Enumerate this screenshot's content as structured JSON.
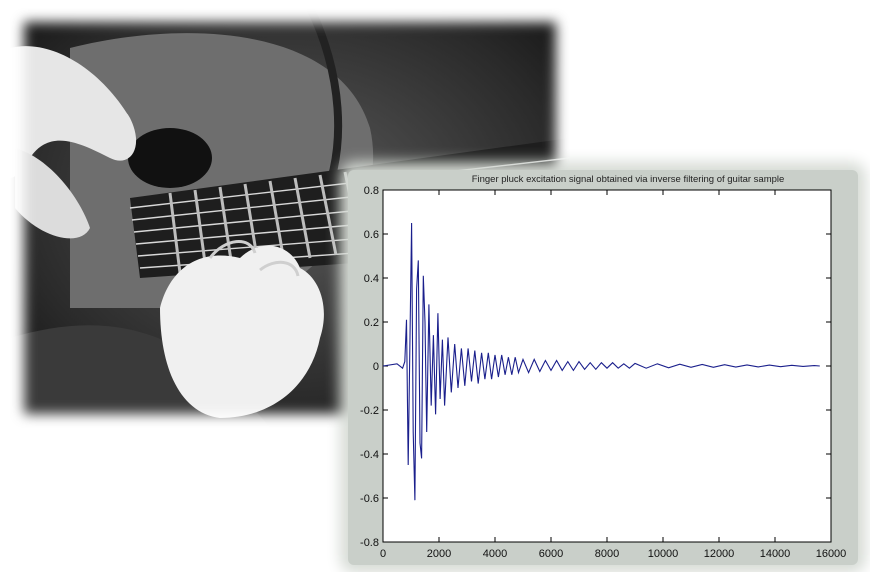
{
  "chart_data": {
    "type": "line",
    "title": "Finger pluck excitation signal obtained via inverse filtering of guitar sample",
    "xlabel": "",
    "ylabel": "",
    "xlim": [
      0,
      16000
    ],
    "ylim": [
      -0.8,
      0.8
    ],
    "xticks": [
      0,
      2000,
      4000,
      6000,
      8000,
      10000,
      12000,
      14000,
      16000
    ],
    "xtick_labels": [
      "0",
      "2000",
      "4000",
      "6000",
      "8000",
      "10000",
      "12000",
      "14000",
      "16000"
    ],
    "yticks": [
      -0.8,
      -0.6,
      -0.4,
      -0.2,
      0,
      0.2,
      0.4,
      0.6,
      0.8
    ],
    "ytick_labels": [
      "-0.8",
      "-0.6",
      "-0.4",
      "-0.2",
      "0",
      "0.2",
      "0.4",
      "0.6",
      "0.8"
    ],
    "grid": false,
    "line_color": "#1a1f8c",
    "series": [
      {
        "x": [
          0,
          500,
          700,
          780,
          840,
          900,
          960,
          1020,
          1080,
          1140,
          1200,
          1260,
          1320,
          1380,
          1440,
          1500,
          1560,
          1640,
          1720,
          1800,
          1880,
          1960,
          2040,
          2120,
          2200,
          2320,
          2440,
          2560,
          2680,
          2800,
          2920,
          3040,
          3160,
          3280,
          3400,
          3520,
          3640,
          3760,
          3880,
          4000,
          4120,
          4240,
          4360,
          4480,
          4600,
          4720,
          4840,
          5000,
          5200,
          5400,
          5600,
          5800,
          6000,
          6200,
          6400,
          6600,
          6800,
          7000,
          7200,
          7400,
          7600,
          7800,
          8000,
          8200,
          8400,
          8600,
          8800,
          9000,
          9400,
          9800,
          10200,
          10600,
          11000,
          11400,
          11800,
          12200,
          12600,
          13000,
          13400,
          13800,
          14200,
          14600,
          15000,
          15400,
          15600
        ],
        "y": [
          0,
          0.01,
          -0.01,
          0.02,
          0.21,
          -0.45,
          0.1,
          0.65,
          -0.3,
          -0.61,
          0.35,
          0.48,
          -0.35,
          -0.42,
          0.41,
          0.2,
          -0.3,
          0.28,
          -0.18,
          0.14,
          -0.22,
          0.24,
          -0.15,
          0.12,
          -0.18,
          0.13,
          -0.12,
          0.1,
          -0.1,
          0.08,
          -0.09,
          0.08,
          -0.07,
          0.07,
          -0.08,
          0.06,
          -0.06,
          0.06,
          -0.06,
          0.05,
          -0.05,
          0.05,
          -0.04,
          0.04,
          -0.04,
          0.04,
          -0.03,
          0.03,
          -0.03,
          0.03,
          -0.025,
          0.025,
          -0.02,
          0.025,
          -0.02,
          0.02,
          -0.02,
          0.02,
          -0.015,
          0.015,
          -0.015,
          0.015,
          -0.01,
          0.015,
          -0.01,
          0.01,
          -0.01,
          0.012,
          -0.01,
          0.01,
          -0.008,
          0.008,
          -0.006,
          0.007,
          -0.006,
          0.006,
          -0.005,
          0.005,
          -0.004,
          0.004,
          -0.003,
          0.003,
          -0.002,
          0.002,
          0.0
        ]
      }
    ]
  }
}
